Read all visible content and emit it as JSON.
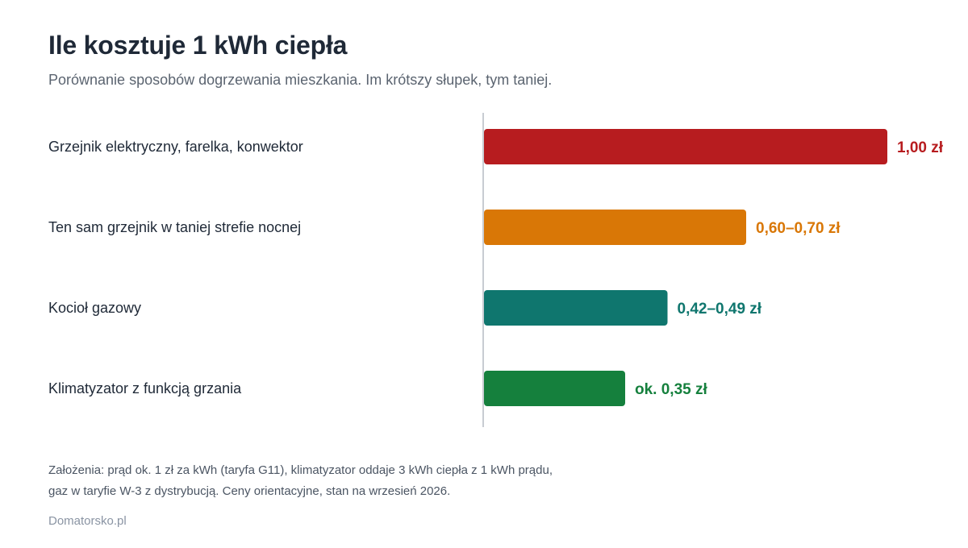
{
  "header": {
    "title": "Ile kosztuje 1 kWh ciepła",
    "subtitle": "Porównanie sposobów dogrzewania mieszkania. Im krótszy słupek, tym taniej."
  },
  "chart_data": {
    "type": "bar",
    "orientation": "horizontal",
    "categories": [
      "Grzejnik elektryczny, farelka, konwektor",
      "Ten sam grzejnik w taniej strefie nocnej",
      "Kocioł gazowy",
      "Klimatyzator z funkcją grzania"
    ],
    "values": [
      1.0,
      0.65,
      0.455,
      0.35
    ],
    "value_labels": [
      "1,00 zł",
      "0,60–0,70 zł",
      "0,42–0,49 zł",
      "ok. 0,35 zł"
    ],
    "colors": [
      "#b71c1f",
      "#d97706",
      "#0f766e",
      "#15803d"
    ],
    "xlim": [
      0,
      1.0
    ],
    "grid": false,
    "legend": "none"
  },
  "footer": {
    "note_line1": "Założenia: prąd ok. 1 zł za kWh (taryfa G11), klimatyzator oddaje 3 kWh ciepła z 1 kWh prądu,",
    "note_line2": "gaz w taryfie W-3 z dystrybucją. Ceny orientacyjne, stan na wrzesień 2026.",
    "source": "Domatorsko.pl"
  }
}
